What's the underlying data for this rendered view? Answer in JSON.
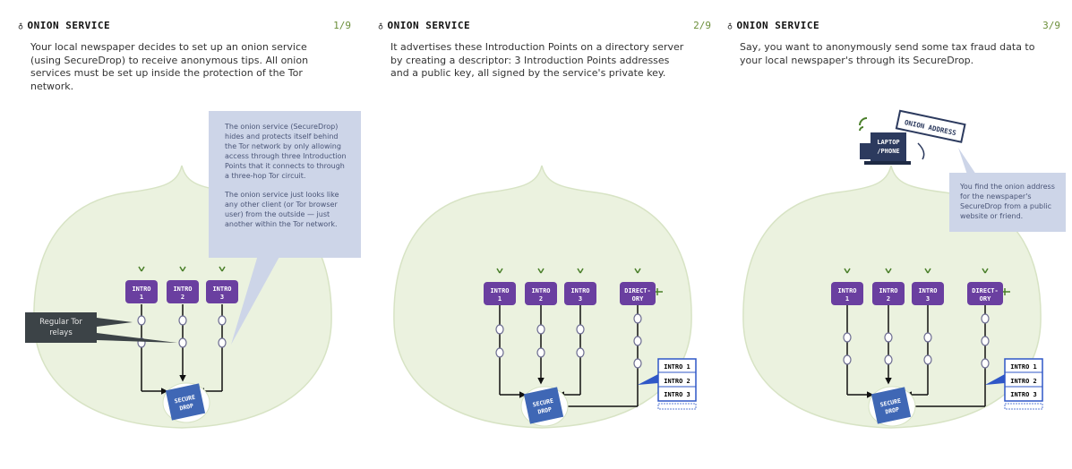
{
  "panels": [
    {
      "title": "ONION SERVICE",
      "page": "1/9",
      "text": "Your local newspaper decides to set up an onion service (using SecureDrop) to receive anonymous tips. All onion services must be set up inside the protection of the Tor network.",
      "callout": {
        "p1": "The onion service (SecureDrop) hides and protects itself behind the Tor network by only allowing access through three Introduction Points that it connects to through a three-hop Tor circuit.",
        "p2": "The onion service just looks like any other client (or Tor browser user) from the outside — just another within the Tor network."
      },
      "relay_label": "Regular Tor relays"
    },
    {
      "title": "ONION SERVICE",
      "page": "2/9",
      "text": "It advertises these Introduction Points on a directory server by creating a descriptor: 3 Introduction Points addresses and a public key, all signed by the service's private key."
    },
    {
      "title": "ONION SERVICE",
      "page": "3/9",
      "text": "Say, you want to anonymously send some tax fraud data to your local newspaper's through its SecureDrop.",
      "callout": "You find the onion address for the newspaper's SecureDrop from a public website or friend.",
      "laptop": [
        "LAPTOP",
        "/PHONE"
      ],
      "onion_address": "ONION ADDRESS"
    }
  ],
  "intro_labels": [
    [
      "INTRO",
      "1"
    ],
    [
      "INTRO",
      "2"
    ],
    [
      "INTRO",
      "3"
    ]
  ],
  "directory_label": [
    "DIRECT-",
    "ORY"
  ],
  "securedrop_label": [
    "SECURE",
    "DROP"
  ],
  "descriptor": {
    "rows": [
      "INTRO 1",
      "INTRO 2",
      "INTRO 3"
    ]
  },
  "colors": {
    "blob_fill": "#ebf2df",
    "blob_stroke": "#d7e3c4",
    "intro_purple": "#6a3fa0",
    "securedrop_blue": "#3f67b5",
    "descriptor_blue": "#2f57c7",
    "callout_bg": "#cdd5e8",
    "accent_green": "#6b8f3a"
  }
}
